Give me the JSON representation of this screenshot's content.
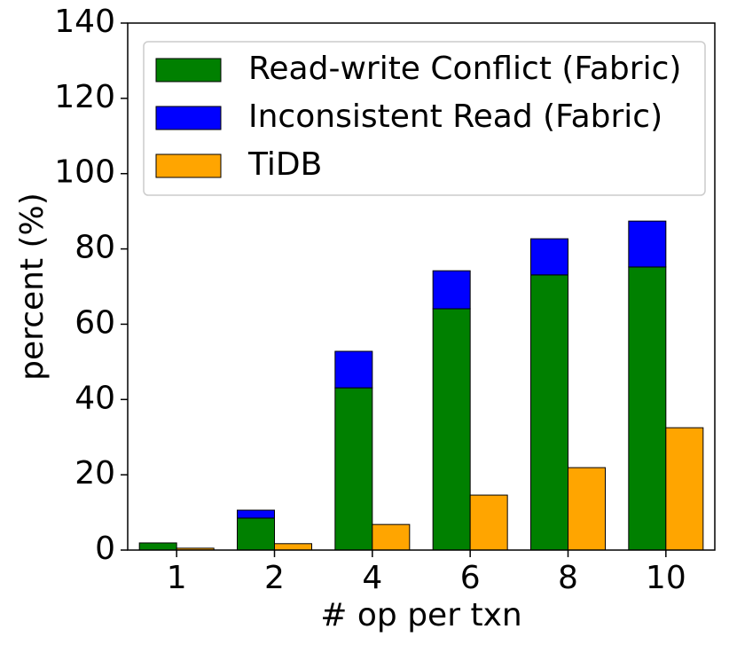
{
  "chart_data": {
    "type": "bar",
    "x_label": "# op per txn",
    "y_label": "percent (%)",
    "categories": [
      "1",
      "2",
      "4",
      "6",
      "8",
      "10"
    ],
    "series": [
      {
        "name": "Read-write Conflict (Fabric)",
        "color": "#008000",
        "group": 0,
        "values": [
          1.9,
          8.5,
          43.1,
          64.1,
          73.1,
          75.2
        ]
      },
      {
        "name": "Inconsistent Read (Fabric)",
        "color": "#0000ff",
        "group": 0,
        "values": [
          0,
          2.1,
          9.7,
          10.1,
          9.6,
          12.2
        ]
      },
      {
        "name": "TiDB",
        "color": "#ffa500",
        "group": 1,
        "values": [
          0.5,
          1.7,
          6.8,
          14.6,
          21.9,
          32.5
        ]
      }
    ],
    "ylim": [
      0,
      140
    ],
    "yticks": [
      0,
      20,
      40,
      60,
      80,
      100,
      120,
      140
    ],
    "grid": false,
    "legend": "upper left"
  }
}
